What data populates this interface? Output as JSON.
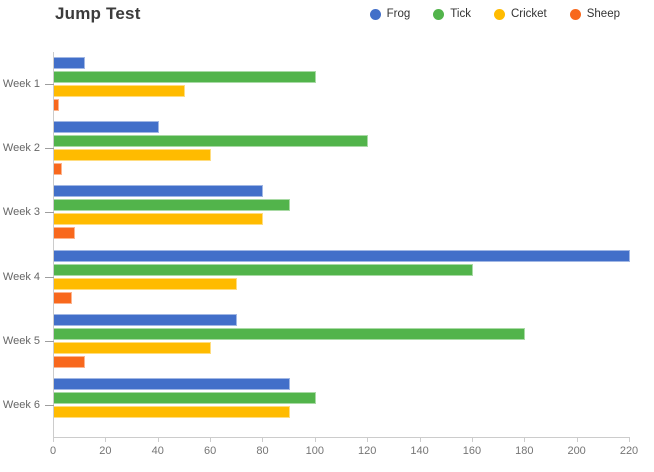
{
  "header": {
    "title": "Jump Test"
  },
  "chart_data": {
    "type": "bar",
    "orientation": "horizontal",
    "title": "Jump Test",
    "categories": [
      "Week 1",
      "Week 2",
      "Week 3",
      "Week 4",
      "Week 5",
      "Week 6"
    ],
    "series": [
      {
        "name": "Frog",
        "color": "#426FC9",
        "values": [
          12,
          40,
          80,
          220,
          70,
          90
        ]
      },
      {
        "name": "Tick",
        "color": "#52B44B",
        "values": [
          100,
          120,
          90,
          160,
          180,
          100
        ]
      },
      {
        "name": "Cricket",
        "color": "#FFBB00",
        "values": [
          50,
          60,
          80,
          70,
          60,
          90
        ]
      },
      {
        "name": "Sheep",
        "color": "#F8681D",
        "values": [
          2,
          3,
          8,
          7,
          12,
          0
        ]
      }
    ],
    "xlim": [
      0,
      220
    ],
    "x_ticks": [
      0,
      20,
      40,
      60,
      80,
      100,
      120,
      140,
      160,
      180,
      200,
      220
    ],
    "grid": false,
    "legend_position": "top-right",
    "axis_color": "#cccccc",
    "tick_label_color": "#757575",
    "category_label_color": "#666666"
  }
}
